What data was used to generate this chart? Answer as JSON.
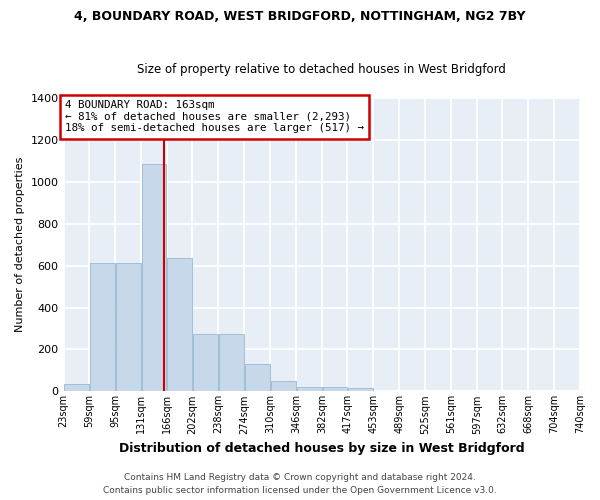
{
  "title1": "4, BOUNDARY ROAD, WEST BRIDGFORD, NOTTINGHAM, NG2 7BY",
  "title2": "Size of property relative to detached houses in West Bridgford",
  "xlabel": "Distribution of detached houses by size in West Bridgford",
  "ylabel": "Number of detached properties",
  "bar_color": "#c6d8ea",
  "bar_edge_color": "#9ab8d0",
  "background_color": "#e8eef5",
  "grid_color": "#ffffff",
  "vline_x": 163,
  "vline_color": "#cc0000",
  "annotation_box_color": "#cc0000",
  "annotation_text": "4 BOUNDARY ROAD: 163sqm\n← 81% of detached houses are smaller (2,293)\n18% of semi-detached houses are larger (517) →",
  "bin_edges": [
    23,
    59,
    95,
    131,
    166,
    202,
    238,
    274,
    310,
    346,
    382,
    417,
    453,
    489,
    525,
    561,
    597,
    632,
    668,
    704,
    740
  ],
  "counts": [
    35,
    614,
    614,
    1085,
    635,
    275,
    275,
    130,
    50,
    22,
    22,
    18,
    0,
    0,
    0,
    0,
    0,
    0,
    0,
    0
  ],
  "ylim": [
    0,
    1400
  ],
  "yticks": [
    0,
    200,
    400,
    600,
    800,
    1000,
    1200,
    1400
  ],
  "footnote1": "Contains HM Land Registry data © Crown copyright and database right 2024.",
  "footnote2": "Contains public sector information licensed under the Open Government Licence v3.0."
}
